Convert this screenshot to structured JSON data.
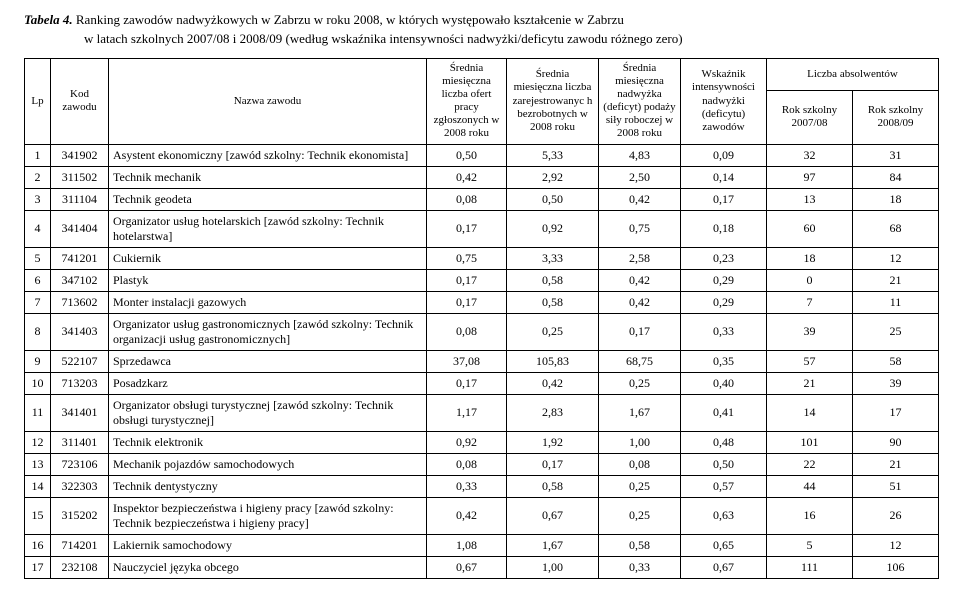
{
  "caption_prefix": "Tabela 4. ",
  "caption_rest": "Ranking zawodów nadwyżkowych w Zabrzu w roku 2008, w których występowało kształcenie w Zabrzu",
  "subtitle": "w latach szkolnych 2007/08 i 2008/09 (według wskaźnika intensywności nadwyżki/deficytu zawodu różnego zero)",
  "headers": {
    "lp": "Lp",
    "kod": "Kod zawodu",
    "nazwa": "Nazwa zawodu",
    "h1": "Średnia miesięczna liczba ofert pracy zgłoszonych w 2008 roku",
    "h2": "Średnia miesięczna liczba zarejestrowanyc h bezrobotnych w 2008 roku",
    "h3": "Średnia miesięczna nadwyżka (deficyt) podaży siły roboczej w 2008 roku",
    "h4": "Wskaźnik intensywności nadwyżki (deficytu) zawodów",
    "abs": "Liczba absolwentów",
    "abs1": "Rok szkolny 2007/08",
    "abs2": "Rok szkolny 2008/09"
  },
  "rows": [
    {
      "lp": "1",
      "kod": "341902",
      "name": "Asystent ekonomiczny [zawód szkolny: Technik ekonomista]",
      "v": [
        "0,50",
        "5,33",
        "4,83",
        "0,09",
        "32",
        "31"
      ]
    },
    {
      "lp": "2",
      "kod": "311502",
      "name": "Technik mechanik",
      "v": [
        "0,42",
        "2,92",
        "2,50",
        "0,14",
        "97",
        "84"
      ]
    },
    {
      "lp": "3",
      "kod": "311104",
      "name": "Technik geodeta",
      "v": [
        "0,08",
        "0,50",
        "0,42",
        "0,17",
        "13",
        "18"
      ]
    },
    {
      "lp": "4",
      "kod": "341404",
      "name": "Organizator usług hotelarskich [zawód szkolny: Technik hotelarstwa]",
      "v": [
        "0,17",
        "0,92",
        "0,75",
        "0,18",
        "60",
        "68"
      ]
    },
    {
      "lp": "5",
      "kod": "741201",
      "name": "Cukiernik",
      "v": [
        "0,75",
        "3,33",
        "2,58",
        "0,23",
        "18",
        "12"
      ]
    },
    {
      "lp": "6",
      "kod": "347102",
      "name": "Plastyk",
      "v": [
        "0,17",
        "0,58",
        "0,42",
        "0,29",
        "0",
        "21"
      ]
    },
    {
      "lp": "7",
      "kod": "713602",
      "name": "Monter instalacji gazowych",
      "v": [
        "0,17",
        "0,58",
        "0,42",
        "0,29",
        "7",
        "11"
      ]
    },
    {
      "lp": "8",
      "kod": "341403",
      "name": "Organizator usług gastronomicznych [zawód szkolny: Technik organizacji usług gastronomicznych]",
      "v": [
        "0,08",
        "0,25",
        "0,17",
        "0,33",
        "39",
        "25"
      ]
    },
    {
      "lp": "9",
      "kod": "522107",
      "name": "Sprzedawca",
      "v": [
        "37,08",
        "105,83",
        "68,75",
        "0,35",
        "57",
        "58"
      ]
    },
    {
      "lp": "10",
      "kod": "713203",
      "name": "Posadzkarz",
      "v": [
        "0,17",
        "0,42",
        "0,25",
        "0,40",
        "21",
        "39"
      ]
    },
    {
      "lp": "11",
      "kod": "341401",
      "name": "Organizator obsługi turystycznej [zawód szkolny: Technik obsługi turystycznej]",
      "v": [
        "1,17",
        "2,83",
        "1,67",
        "0,41",
        "14",
        "17"
      ]
    },
    {
      "lp": "12",
      "kod": "311401",
      "name": "Technik elektronik",
      "v": [
        "0,92",
        "1,92",
        "1,00",
        "0,48",
        "101",
        "90"
      ]
    },
    {
      "lp": "13",
      "kod": "723106",
      "name": "Mechanik pojazdów samochodowych",
      "v": [
        "0,08",
        "0,17",
        "0,08",
        "0,50",
        "22",
        "21"
      ]
    },
    {
      "lp": "14",
      "kod": "322303",
      "name": "Technik dentystyczny",
      "v": [
        "0,33",
        "0,58",
        "0,25",
        "0,57",
        "44",
        "51"
      ]
    },
    {
      "lp": "15",
      "kod": "315202",
      "name": "Inspektor bezpieczeństwa i higieny pracy [zawód szkolny: Technik bezpieczeństwa i higieny pracy]",
      "v": [
        "0,42",
        "0,67",
        "0,25",
        "0,63",
        "16",
        "26"
      ]
    },
    {
      "lp": "16",
      "kod": "714201",
      "name": "Lakiernik samochodowy",
      "v": [
        "1,08",
        "1,67",
        "0,58",
        "0,65",
        "5",
        "12"
      ]
    },
    {
      "lp": "17",
      "kod": "232108",
      "name": "Nauczyciel języka obcego",
      "v": [
        "0,67",
        "1,00",
        "0,33",
        "0,67",
        "111",
        "106"
      ]
    }
  ]
}
